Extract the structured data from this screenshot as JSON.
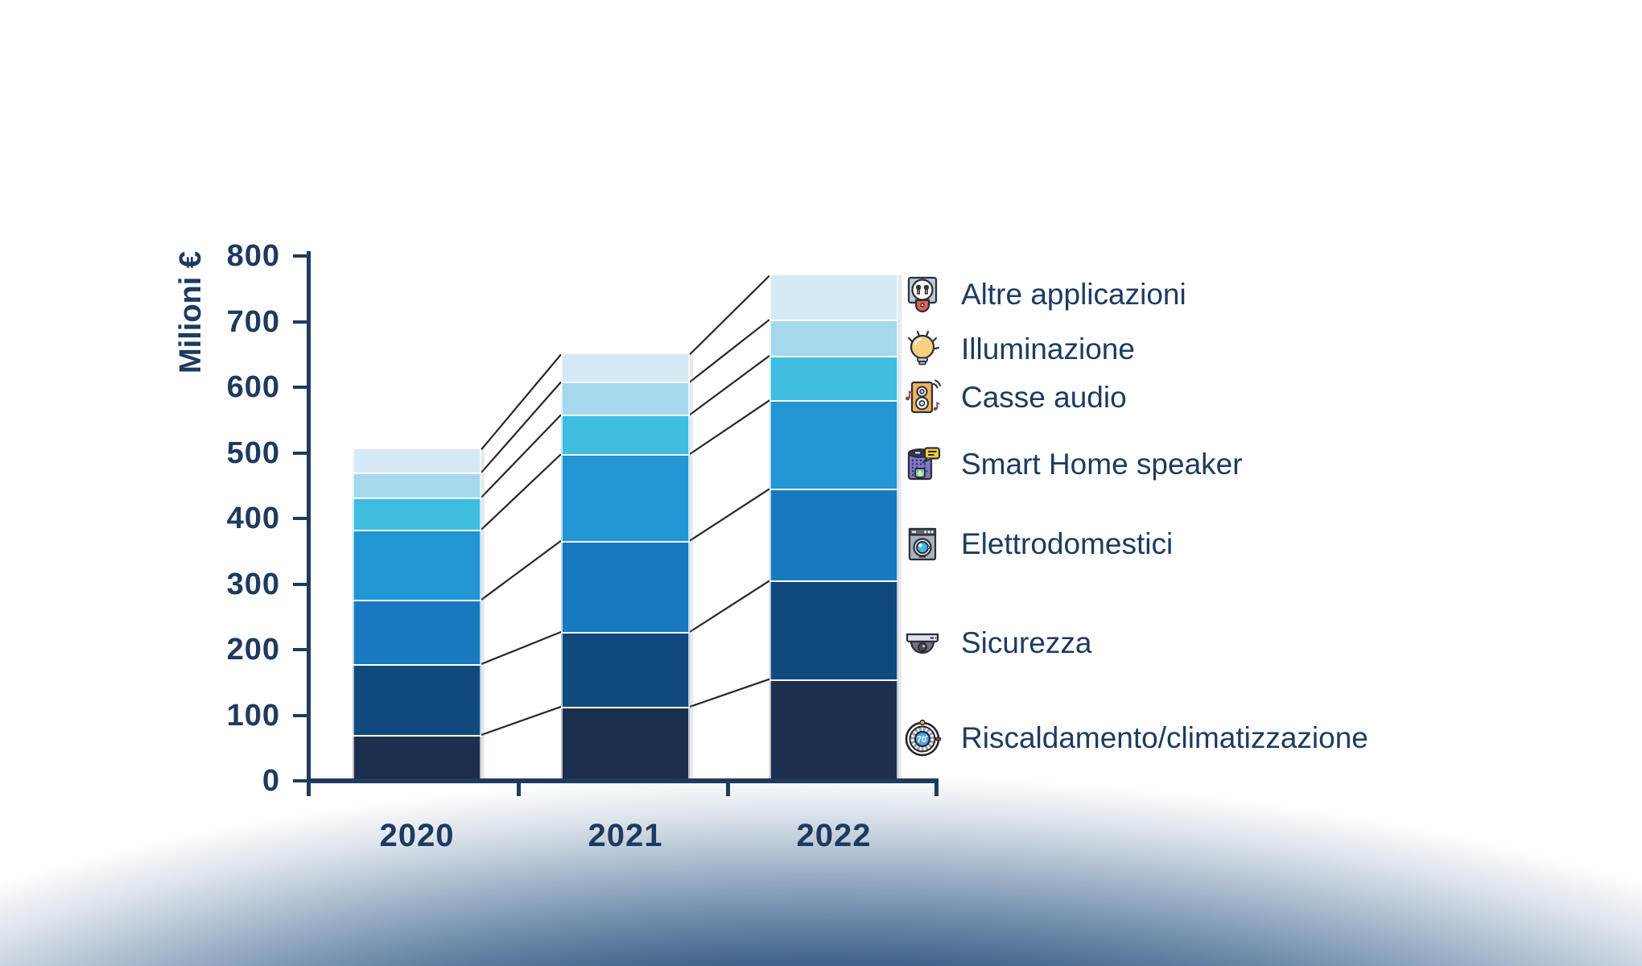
{
  "chart_data": {
    "type": "bar",
    "stacked": true,
    "title": "",
    "ylabel": "Milioni €",
    "xlabel": "",
    "ylim": [
      0,
      800
    ],
    "yticks": [
      0,
      100,
      200,
      300,
      400,
      500,
      600,
      700,
      800
    ],
    "grid": false,
    "legend_position": "right",
    "connectors_between_bars": true,
    "categories": [
      "2020",
      "2021",
      "2022"
    ],
    "series": [
      {
        "name": "Riscaldamento/climatizzazione",
        "color": "#1d2f4e",
        "values": [
          70,
          113,
          155
        ]
      },
      {
        "name": "Sicurezza",
        "color": "#10497d",
        "values": [
          108,
          114,
          150
        ]
      },
      {
        "name": "Elettrodomestici",
        "color": "#1879c1",
        "values": [
          98,
          139,
          140
        ]
      },
      {
        "name": "Smart Home speaker",
        "color": "#2196d3",
        "values": [
          107,
          132,
          135
        ]
      },
      {
        "name": "Casse audio",
        "color": "#3ebde0",
        "values": [
          49,
          60,
          68
        ]
      },
      {
        "name": "Illuminazione",
        "color": "#a5d8ec",
        "values": [
          38,
          50,
          55
        ]
      },
      {
        "name": "Altre applicazioni",
        "color": "#d6eaf6",
        "values": [
          35,
          42,
          67
        ]
      }
    ],
    "totals": [
      505,
      650,
      770
    ]
  },
  "legend": {
    "items": [
      {
        "label": "Altre applicazioni",
        "icon": "power-plug"
      },
      {
        "label": "Illuminazione",
        "icon": "light-bulb"
      },
      {
        "label": "Casse audio",
        "icon": "audio-speaker"
      },
      {
        "label": "Smart Home speaker",
        "icon": "smart-speaker"
      },
      {
        "label": "Elettrodomestici",
        "icon": "washing-machine"
      },
      {
        "label": "Sicurezza",
        "icon": "security-camera"
      },
      {
        "label": "Riscaldamento/climatizzazione",
        "icon": "thermostat"
      }
    ]
  },
  "icons": {
    "thermostat_display": "70"
  },
  "colors": {
    "text": "#1e3a5f",
    "axis": "#1e3a5f",
    "connector_line": "#272727",
    "background_glow": "#3e6189"
  }
}
